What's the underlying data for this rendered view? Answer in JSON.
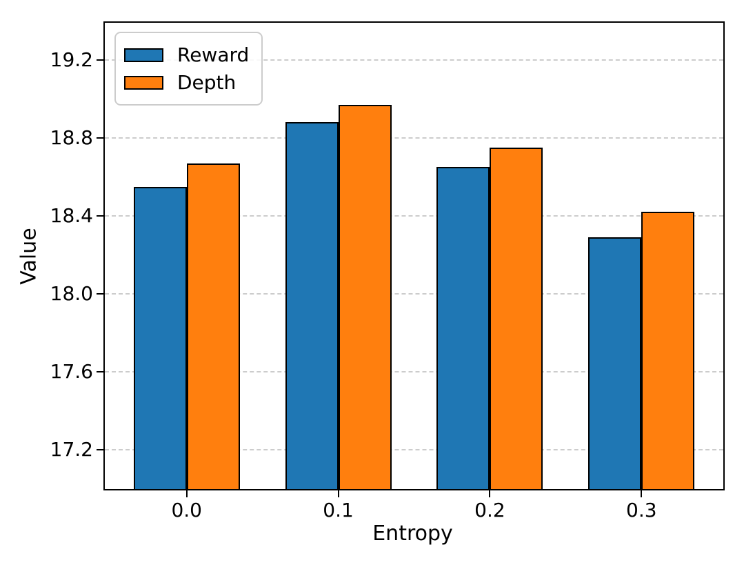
{
  "chart_data": {
    "type": "bar",
    "title": "",
    "xlabel": "Entropy",
    "ylabel": "Value",
    "categories": [
      "0.0",
      "0.1",
      "0.2",
      "0.3"
    ],
    "series": [
      {
        "name": "Reward",
        "color": "#1f77b4",
        "values": [
          18.55,
          18.88,
          18.65,
          18.29
        ]
      },
      {
        "name": "Depth",
        "color": "#ff7f0e",
        "values": [
          18.67,
          18.97,
          18.75,
          18.42
        ]
      }
    ],
    "bar_edge_color": "#000000",
    "bar_width": 0.35,
    "xlim": [
      -0.54,
      3.54
    ],
    "ylim": [
      17.0,
      19.39
    ],
    "y_ticks": [
      17.2,
      17.6,
      18.0,
      18.4,
      18.8,
      19.2
    ],
    "grid": "horizontal-dashed",
    "grid_color": "#cccccc",
    "legend_position": "upper-left",
    "background_color": "#ffffff"
  }
}
